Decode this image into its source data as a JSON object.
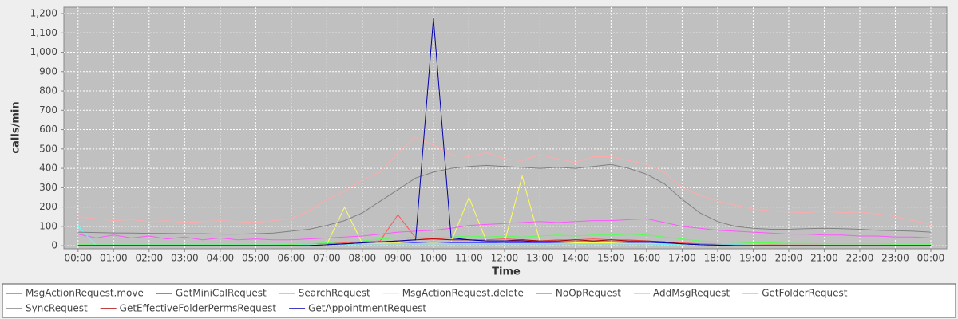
{
  "chart_data": {
    "type": "line",
    "xlabel": "Time",
    "ylabel": "calls/min",
    "grid": true,
    "legend_position": "bottom",
    "xlim": [
      -0.4,
      24.45
    ],
    "ylim": [
      -16,
      1233
    ],
    "xticks": [
      {
        "value": 0,
        "label": "00:00"
      },
      {
        "value": 1,
        "label": "01:00"
      },
      {
        "value": 2,
        "label": "02:00"
      },
      {
        "value": 3,
        "label": "03:00"
      },
      {
        "value": 4,
        "label": "04:00"
      },
      {
        "value": 5,
        "label": "05:00"
      },
      {
        "value": 6,
        "label": "06:00"
      },
      {
        "value": 7,
        "label": "07:00"
      },
      {
        "value": 8,
        "label": "08:00"
      },
      {
        "value": 9,
        "label": "09:00"
      },
      {
        "value": 10,
        "label": "10:00"
      },
      {
        "value": 11,
        "label": "11:00"
      },
      {
        "value": 12,
        "label": "12:00"
      },
      {
        "value": 13,
        "label": "13:00"
      },
      {
        "value": 14,
        "label": "14:00"
      },
      {
        "value": 15,
        "label": "15:00"
      },
      {
        "value": 16,
        "label": "16:00"
      },
      {
        "value": 17,
        "label": "17:00"
      },
      {
        "value": 18,
        "label": "18:00"
      },
      {
        "value": 19,
        "label": "19:00"
      },
      {
        "value": 20,
        "label": "20:00"
      },
      {
        "value": 21,
        "label": "21:00"
      },
      {
        "value": 22,
        "label": "22:00"
      },
      {
        "value": 23,
        "label": "23:00"
      },
      {
        "value": 24,
        "label": "00:00"
      }
    ],
    "yticks": [
      0,
      100,
      200,
      300,
      400,
      500,
      600,
      700,
      800,
      900,
      {
        "value": 1000,
        "label": "1,000"
      },
      {
        "value": 1100,
        "label": "1,100"
      },
      {
        "value": 1200,
        "label": "1,200"
      }
    ],
    "x": [
      0,
      0.5,
      1,
      1.5,
      2,
      2.5,
      3,
      3.5,
      4,
      4.5,
      5,
      5.5,
      6,
      6.5,
      7,
      7.5,
      8,
      8.5,
      9,
      9.5,
      10,
      10.5,
      11,
      11.5,
      12,
      12.5,
      13,
      13.5,
      14,
      14.5,
      15,
      15.5,
      16,
      16.5,
      17,
      17.5,
      18,
      18.5,
      19,
      19.5,
      20,
      20.5,
      21,
      21.5,
      22,
      22.5,
      23,
      23.5,
      24
    ],
    "series": [
      {
        "name": "MsgActionRequest.move",
        "color": "#ff5555",
        "values": [
          3,
          3,
          3,
          3,
          3,
          3,
          3,
          3,
          3,
          3,
          3,
          3,
          5,
          8,
          10,
          15,
          20,
          25,
          160,
          40,
          35,
          40,
          30,
          30,
          35,
          30,
          25,
          30,
          30,
          35,
          30,
          30,
          25,
          20,
          15,
          10,
          8,
          5,
          5,
          5,
          4,
          4,
          3,
          3,
          3,
          3,
          3,
          3,
          3
        ]
      },
      {
        "name": "GetMiniCalRequest",
        "color": "#5555ff",
        "values": [
          2,
          2,
          2,
          2,
          2,
          2,
          2,
          2,
          2,
          2,
          2,
          2,
          2,
          2,
          5,
          8,
          10,
          12,
          15,
          15,
          20,
          15,
          15,
          15,
          15,
          15,
          15,
          15,
          15,
          15,
          15,
          15,
          15,
          12,
          10,
          8,
          5,
          5,
          4,
          2,
          2,
          2,
          2,
          2,
          2,
          2,
          2,
          2,
          2
        ]
      },
      {
        "name": "SearchRequest",
        "color": "#55ff55",
        "values": [
          5,
          5,
          5,
          5,
          5,
          5,
          5,
          5,
          5,
          5,
          5,
          5,
          8,
          10,
          15,
          20,
          25,
          35,
          40,
          45,
          40,
          45,
          50,
          45,
          50,
          45,
          50,
          55,
          50,
          55,
          55,
          60,
          55,
          45,
          35,
          25,
          20,
          18,
          15,
          15,
          12,
          12,
          10,
          10,
          10,
          10,
          8,
          8,
          8
        ]
      },
      {
        "name": "MsgActionRequest.delete",
        "color": "#ffff55",
        "values": [
          2,
          2,
          2,
          2,
          2,
          2,
          2,
          2,
          2,
          2,
          2,
          2,
          3,
          5,
          8,
          200,
          10,
          12,
          15,
          20,
          18,
          20,
          250,
          20,
          18,
          360,
          20,
          18,
          15,
          15,
          15,
          12,
          12,
          10,
          8,
          5,
          5,
          4,
          4,
          3,
          3,
          3,
          3,
          3,
          3,
          3,
          3,
          3,
          3
        ]
      },
      {
        "name": "NoOpRequest",
        "color": "#ff55ff",
        "values": [
          60,
          40,
          55,
          40,
          50,
          35,
          45,
          30,
          40,
          30,
          35,
          30,
          30,
          35,
          40,
          45,
          50,
          60,
          70,
          75,
          80,
          90,
          105,
          110,
          115,
          120,
          125,
          120,
          125,
          130,
          130,
          135,
          140,
          120,
          100,
          90,
          80,
          75,
          70,
          65,
          60,
          60,
          55,
          55,
          50,
          50,
          45,
          45,
          40
        ]
      },
      {
        "name": "AddMsgRequest",
        "color": "#55ffff",
        "values": [
          100,
          3,
          3,
          3,
          3,
          3,
          3,
          3,
          3,
          3,
          3,
          3,
          3,
          5,
          5,
          8,
          10,
          10,
          10,
          10,
          10,
          10,
          10,
          10,
          10,
          10,
          10,
          10,
          10,
          10,
          10,
          10,
          10,
          8,
          8,
          5,
          5,
          5,
          3,
          3,
          3,
          3,
          3,
          3,
          3,
          3,
          3,
          3,
          3
        ]
      },
      {
        "name": "GetFolderRequest",
        "color": "#ffaaaa",
        "values": [
          150,
          140,
          130,
          135,
          125,
          130,
          120,
          125,
          130,
          125,
          120,
          130,
          140,
          180,
          240,
          280,
          340,
          380,
          480,
          560,
          520,
          470,
          460,
          480,
          450,
          440,
          470,
          450,
          430,
          460,
          460,
          440,
          420,
          380,
          300,
          260,
          230,
          210,
          190,
          180,
          175,
          170,
          180,
          170,
          175,
          165,
          150,
          130,
          110
        ]
      },
      {
        "name": "SyncRequest",
        "color": "#808080",
        "values": [
          70,
          68,
          66,
          65,
          64,
          63,
          62,
          62,
          60,
          60,
          62,
          65,
          75,
          85,
          105,
          130,
          170,
          230,
          290,
          350,
          380,
          400,
          410,
          415,
          410,
          405,
          400,
          405,
          400,
          410,
          420,
          400,
          370,
          320,
          240,
          170,
          125,
          100,
          90,
          85,
          85,
          88,
          90,
          88,
          85,
          80,
          78,
          75,
          70
        ]
      },
      {
        "name": "GetEffectiveFolderPermsRequest",
        "color": "#aa0000",
        "values": [
          1,
          1,
          1,
          1,
          1,
          1,
          1,
          1,
          1,
          1,
          1,
          1,
          1,
          1,
          5,
          10,
          15,
          20,
          25,
          30,
          35,
          30,
          30,
          25,
          25,
          30,
          25,
          25,
          30,
          25,
          30,
          25,
          25,
          20,
          10,
          5,
          3,
          1,
          1,
          1,
          1,
          1,
          1,
          1,
          1,
          1,
          1,
          1,
          1
        ]
      },
      {
        "name": "GetAppointmentRequest",
        "color": "#0000aa",
        "values": [
          1,
          1,
          1,
          1,
          1,
          1,
          1,
          1,
          1,
          1,
          1,
          1,
          1,
          1,
          5,
          10,
          15,
          20,
          25,
          30,
          1175,
          40,
          30,
          25,
          25,
          25,
          20,
          20,
          20,
          20,
          20,
          20,
          20,
          15,
          10,
          5,
          3,
          1,
          1,
          1,
          1,
          1,
          1,
          1,
          1,
          1,
          1,
          1,
          1
        ]
      }
    ]
  }
}
